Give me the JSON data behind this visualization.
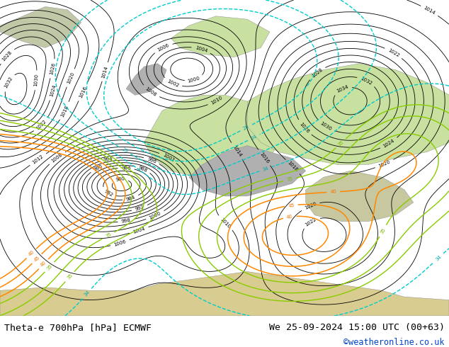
{
  "title_left": "Theta-e 700hPa [hPa] ECMWF",
  "title_right": "We 25-09-2024 15:00 UTC (00+63)",
  "copyright": "©weatheronline.co.uk",
  "ocean_color": "#e8e8e8",
  "land_green_color": "#c8e0a0",
  "land_gray_color": "#b0b0b0",
  "copyright_color": "#0044cc",
  "text_color": "#000000",
  "title_fontsize": 9.5,
  "bottom_bar_color": "#ffffff"
}
